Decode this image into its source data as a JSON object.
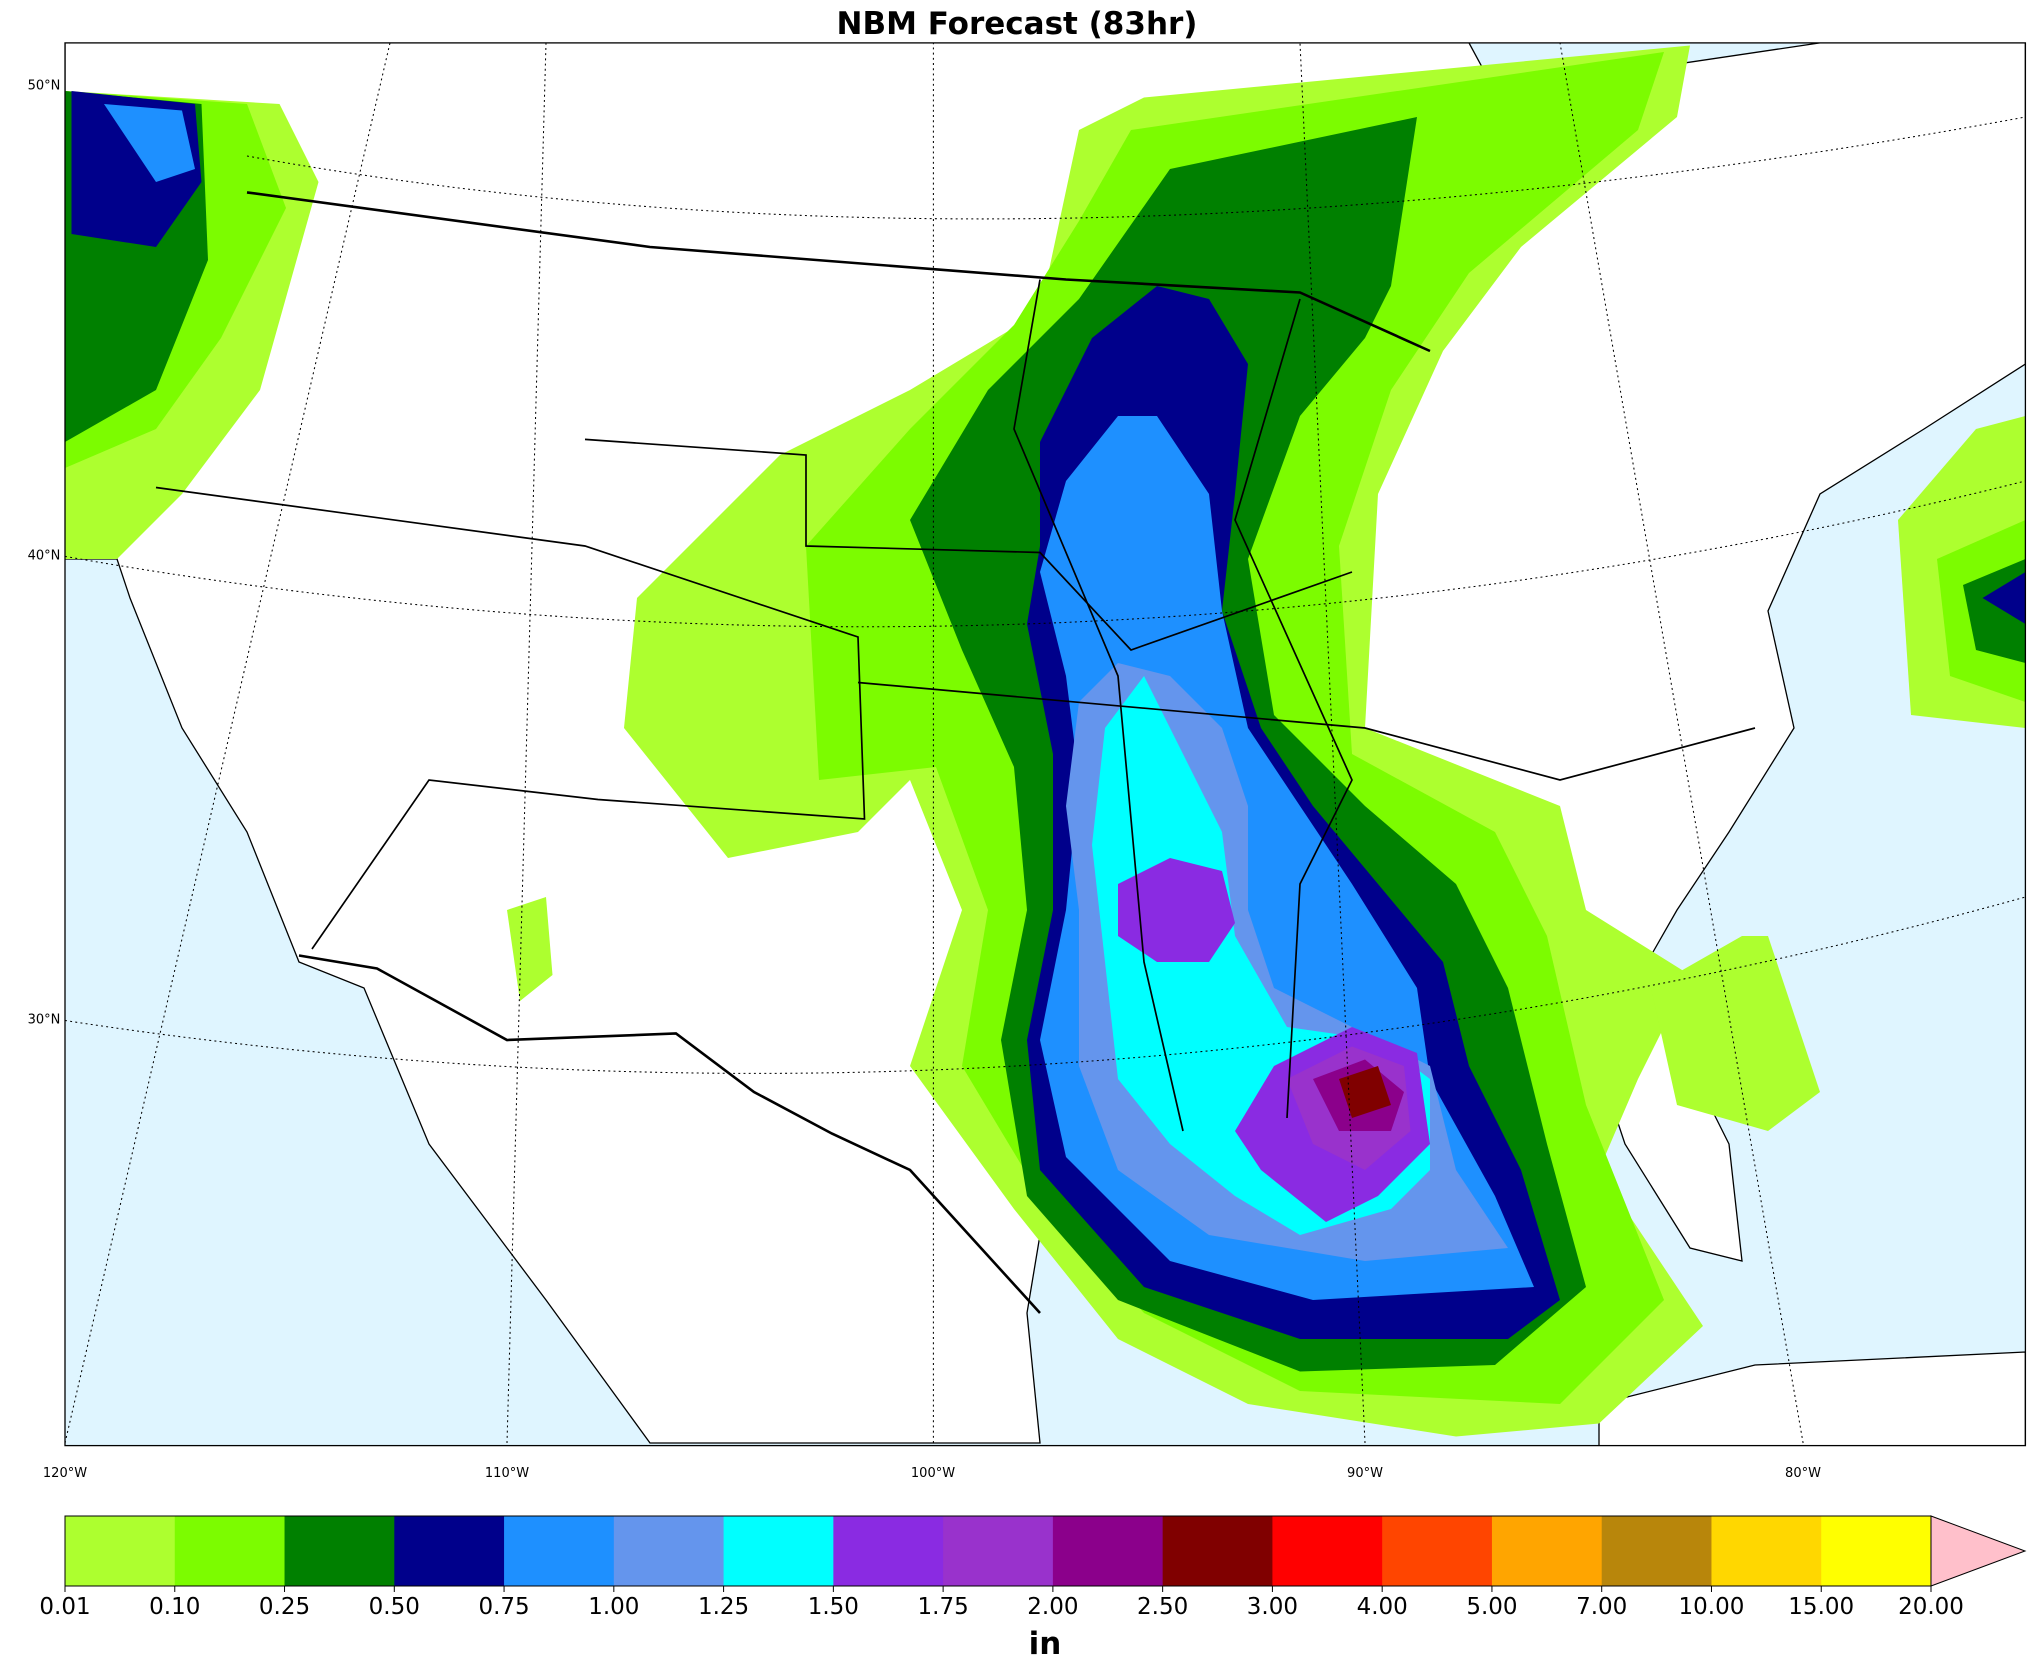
{
  "title": "NBM Forecast (83hr)",
  "map": {
    "latitude_labels": [
      "50°N",
      "40°N",
      "30°N"
    ],
    "longitude_labels": [
      "120°W",
      "110°W",
      "100°W",
      "90°W",
      "80°W"
    ]
  },
  "colorbar": {
    "label": "in",
    "boundaries": [
      {
        "value": 0.01,
        "label": "0.01"
      },
      {
        "value": 0.1,
        "label": "0.10"
      },
      {
        "value": 0.25,
        "label": "0.25"
      },
      {
        "value": 0.5,
        "label": "0.50"
      },
      {
        "value": 0.75,
        "label": "0.75"
      },
      {
        "value": 1,
        "label": "1.00"
      },
      {
        "value": 1.25,
        "label": "1.25"
      },
      {
        "value": 1.5,
        "label": "1.50"
      },
      {
        "value": 1.75,
        "label": "1.75"
      },
      {
        "value": 2,
        "label": "2.00"
      },
      {
        "value": 2.5,
        "label": "2.50"
      },
      {
        "value": 3,
        "label": "3.00"
      },
      {
        "value": 4,
        "label": "4.00"
      },
      {
        "value": 5,
        "label": "5.00"
      },
      {
        "value": 7,
        "label": "7.00"
      },
      {
        "value": 10,
        "label": "10.00"
      },
      {
        "value": 15,
        "label": "15.00"
      },
      {
        "value": 20,
        "label": "20.00"
      }
    ],
    "colors": [
      "#adff2f",
      "#7cfc00",
      "#008000",
      "#00008b",
      "#1e90ff",
      "#6495ed",
      "#00ffff",
      "#8a2be2",
      "#9932cc",
      "#8b008b",
      "#800000",
      "#ff0000",
      "#ff4500",
      "#ffa500",
      "#b8860b",
      "#ffd700",
      "#ffff00"
    ],
    "extend_color": "#ffc0cb"
  }
}
